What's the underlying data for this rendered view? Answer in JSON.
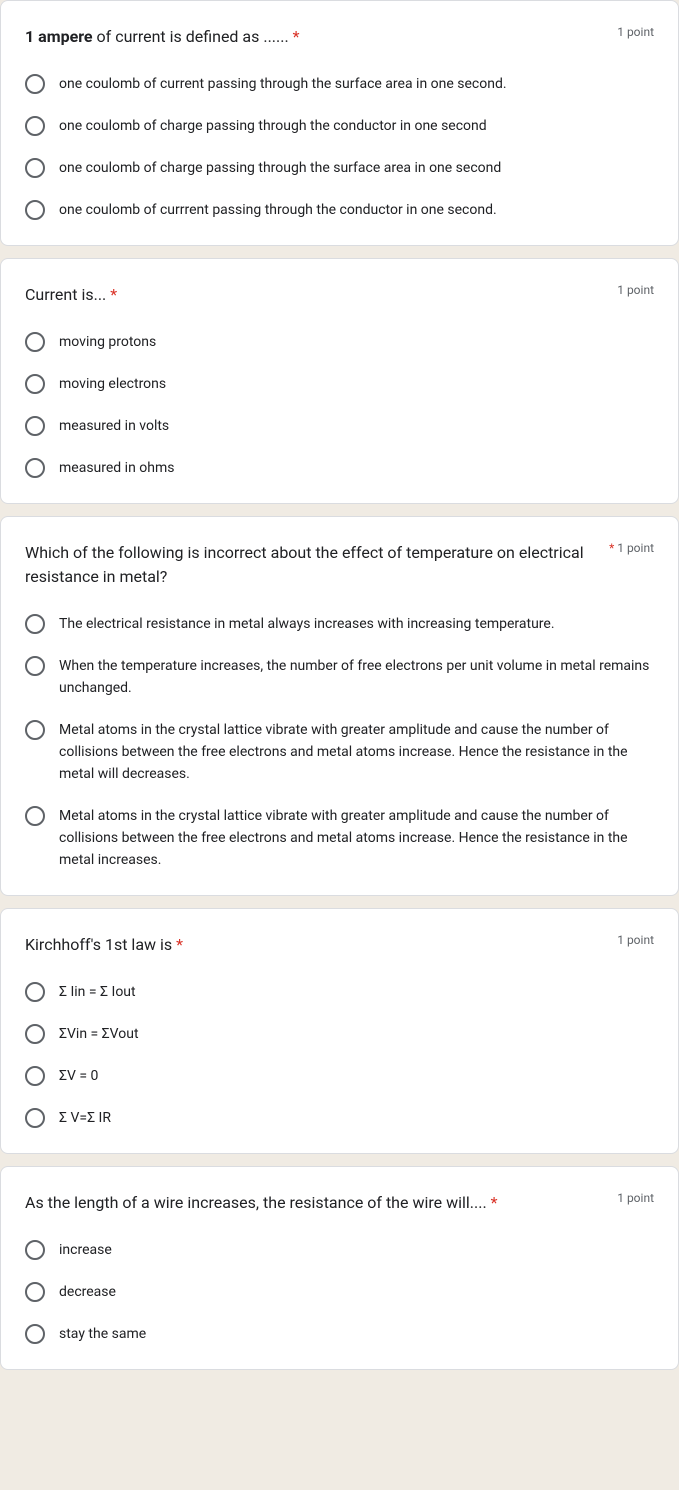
{
  "questions": [
    {
      "title_bold": "1 ampere",
      "title_rest": " of current is defined as ...... ",
      "points": "1 point",
      "options": [
        "one coulomb of current passing through the surface area in one second.",
        "one coulomb of charge passing through the conductor in one second",
        "one coulomb of charge passing through the surface area in one second",
        "one coulomb of currrent passing through the conductor in one second."
      ]
    },
    {
      "title_bold": "",
      "title_rest": "Current is... ",
      "points": "1 point",
      "options": [
        "moving protons",
        "moving electrons",
        "measured in volts",
        "measured in ohms"
      ]
    },
    {
      "title_bold": "",
      "title_rest": "Which of the following is incorrect about the effect of temperature on electrical resistance in metal?",
      "points": "1 point",
      "asterisk_before_points": true,
      "options": [
        "The electrical resistance in metal always increases with increasing temperature.",
        "When the temperature increases, the number of free electrons per unit volume in metal remains unchanged.",
        "Metal atoms in the crystal lattice vibrate with greater amplitude and cause the number of collisions between the free electrons and metal atoms increase. Hence the resistance in the metal will decreases.",
        "Metal atoms in the crystal lattice vibrate with greater amplitude and cause the number of collisions between the free electrons and metal atoms increase. Hence the resistance in the metal increases."
      ]
    },
    {
      "title_bold": "",
      "title_rest": "Kirchhoff's 1st law is ",
      "points": "1 point",
      "options": [
        "Σ Iin = Σ Iout",
        "ΣVin = ΣVout",
        "ΣV = 0",
        "Σ V=Σ IR"
      ]
    },
    {
      "title_bold": "",
      "title_rest": "As the length of a wire increases, the resistance of the wire will.... ",
      "points": "1 point",
      "options": [
        "increase",
        "decrease",
        "stay the same"
      ]
    }
  ],
  "colors": {
    "background": "#f0ebe3",
    "card_bg": "#ffffff",
    "text": "#202124",
    "secondary_text": "#5f6368",
    "required": "#d93025",
    "border": "#dadce0"
  }
}
